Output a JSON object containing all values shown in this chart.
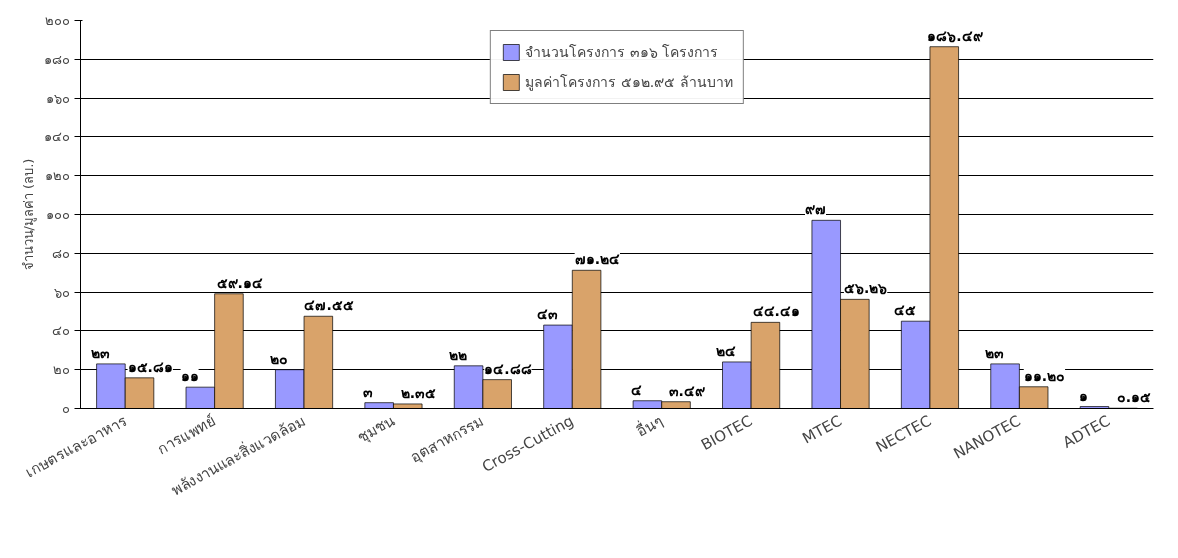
{
  "chart_data": {
    "type": "bar",
    "ylabel": "จำนวน/มูลค่า (ลบ.)",
    "categories": [
      "เกษตรและอาหาร",
      "การแพทย์",
      "พลังงานและสิ่งแวดล้อม",
      "ชุมชน",
      "อุตสาหกรรม",
      "Cross-Cutting",
      "อื่นๆ",
      "BIOTEC",
      "MTEC",
      "NECTEC",
      "NANOTEC",
      "ADTEC"
    ],
    "series": [
      {
        "name": "จำนวนโครงการ ๓๑๖ โครงการ",
        "color": "#9999ff",
        "values": [
          23,
          11,
          20,
          3,
          22,
          43,
          4,
          24,
          97,
          45,
          23,
          1
        ],
        "value_labels": [
          "๒๓",
          "๑๑",
          "๒๐",
          "๓",
          "๒๒",
          "๔๓",
          "๔",
          "๒๔",
          "๙๗",
          "๔๕",
          "๒๓",
          "๑"
        ]
      },
      {
        "name": "มูลค่าโครงการ ๕๑๒.๙๕ ล้านบาท",
        "color": "#d9a36a",
        "values": [
          15.81,
          59.14,
          47.55,
          2.35,
          14.88,
          71.24,
          3.49,
          44.41,
          56.26,
          186.49,
          11.2,
          0.15
        ],
        "value_labels": [
          "๑๕.๘๑",
          "๕๙.๑๔",
          "๔๗.๕๕",
          "๒.๓๕",
          "๑๔.๘๘",
          "๗๑.๒๔",
          "๓.๔๙",
          "๔๔.๔๑",
          "๕๖.๒๖",
          "๑๘๖.๔๙",
          "๑๑.๒๐",
          "๐.๑๕"
        ]
      }
    ],
    "ylim": [
      0,
      200
    ],
    "yticks": [
      {
        "value": 0,
        "label": "๐"
      },
      {
        "value": 20,
        "label": "๒๐"
      },
      {
        "value": 40,
        "label": "๔๐"
      },
      {
        "value": 60,
        "label": "๖๐"
      },
      {
        "value": 80,
        "label": "๘๐"
      },
      {
        "value": 100,
        "label": "๑๐๐"
      },
      {
        "value": 120,
        "label": "๑๒๐"
      },
      {
        "value": 140,
        "label": "๑๔๐"
      },
      {
        "value": 160,
        "label": "๑๖๐"
      },
      {
        "value": 180,
        "label": "๑๘๐"
      },
      {
        "value": 200,
        "label": "๒๐๐"
      }
    ],
    "grid": "y",
    "legend": "top"
  }
}
